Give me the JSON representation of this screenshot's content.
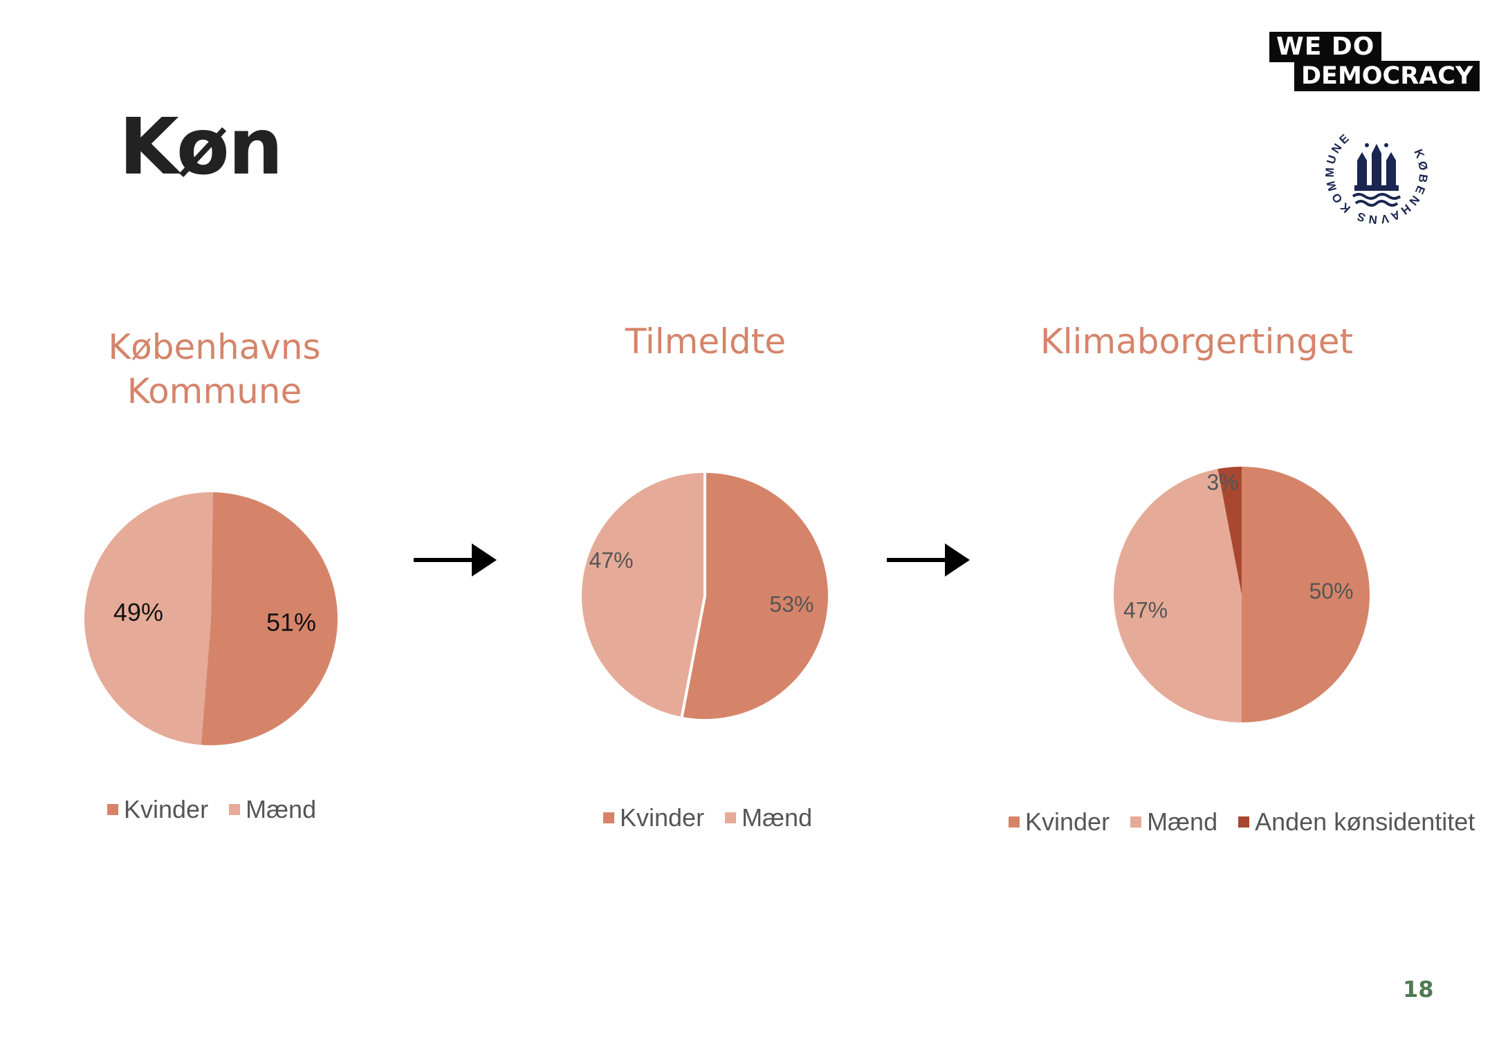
{
  "slide": {
    "title": "Køn",
    "page_number": "18"
  },
  "logos": {
    "wedo_line1": "WE  DO",
    "wedo_line2": "DEMOCRACY",
    "seal_text": "KØBENHAVNS KOMMUNE"
  },
  "colors": {
    "kvinder": "#d5846a",
    "maend": "#e5ab98",
    "anden": "#a84830",
    "title_accent": "#d5846a"
  },
  "chart_data": [
    {
      "type": "pie",
      "title_lines": [
        "Københavns",
        "Kommune"
      ],
      "slices": [
        {
          "name": "Kvinder",
          "value": 51,
          "label": "51%"
        },
        {
          "name": "Mænd",
          "value": 49,
          "label": "49%"
        }
      ],
      "legend": [
        "Kvinder",
        "Mænd"
      ],
      "legend_placement": "bottom"
    },
    {
      "type": "pie",
      "title_lines": [
        "Tilmeldte"
      ],
      "slices": [
        {
          "name": "Kvinder",
          "value": 53,
          "label": "53%"
        },
        {
          "name": "Mænd",
          "value": 47,
          "label": "47%"
        }
      ],
      "legend": [
        "Kvinder",
        "Mænd"
      ],
      "legend_placement": "bottom"
    },
    {
      "type": "pie",
      "title_lines": [
        "Klimaborgertinget"
      ],
      "slices": [
        {
          "name": "Kvinder",
          "value": 50,
          "label": "50%"
        },
        {
          "name": "Mænd",
          "value": 47,
          "label": "47%"
        },
        {
          "name": "Anden kønsidentitet",
          "value": 3,
          "label": "3%"
        }
      ],
      "legend": [
        "Kvinder",
        "Mænd",
        "Anden kønsidentitet"
      ],
      "legend_placement": "bottom"
    }
  ]
}
